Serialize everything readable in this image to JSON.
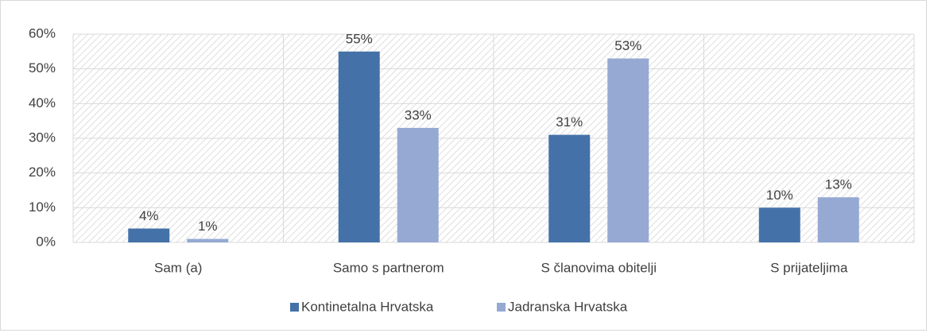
{
  "chart_data": {
    "type": "bar",
    "categories": [
      "Sam (a)",
      "Samo s partnerom",
      "S članovima obitelji",
      "S prijateljima"
    ],
    "series": [
      {
        "name": "Kontinetalna Hrvatska",
        "color": "#4472a8",
        "values": [
          4,
          55,
          31,
          10
        ],
        "value_labels": [
          "4%",
          "55%",
          "31%",
          "10%"
        ]
      },
      {
        "name": "Jadranska Hrvatska",
        "color": "#95a9d3",
        "values": [
          1,
          33,
          53,
          13
        ],
        "value_labels": [
          "1%",
          "33%",
          "53%",
          "13%"
        ]
      }
    ],
    "ylim": [
      0,
      60
    ],
    "yticks": [
      {
        "value": 0,
        "label": "0%"
      },
      {
        "value": 10,
        "label": "10%"
      },
      {
        "value": 20,
        "label": "20%"
      },
      {
        "value": 30,
        "label": "30%"
      },
      {
        "value": 40,
        "label": "40%"
      },
      {
        "value": 50,
        "label": "50%"
      },
      {
        "value": 60,
        "label": "60%"
      }
    ],
    "grid": true,
    "legend": "bottom"
  }
}
